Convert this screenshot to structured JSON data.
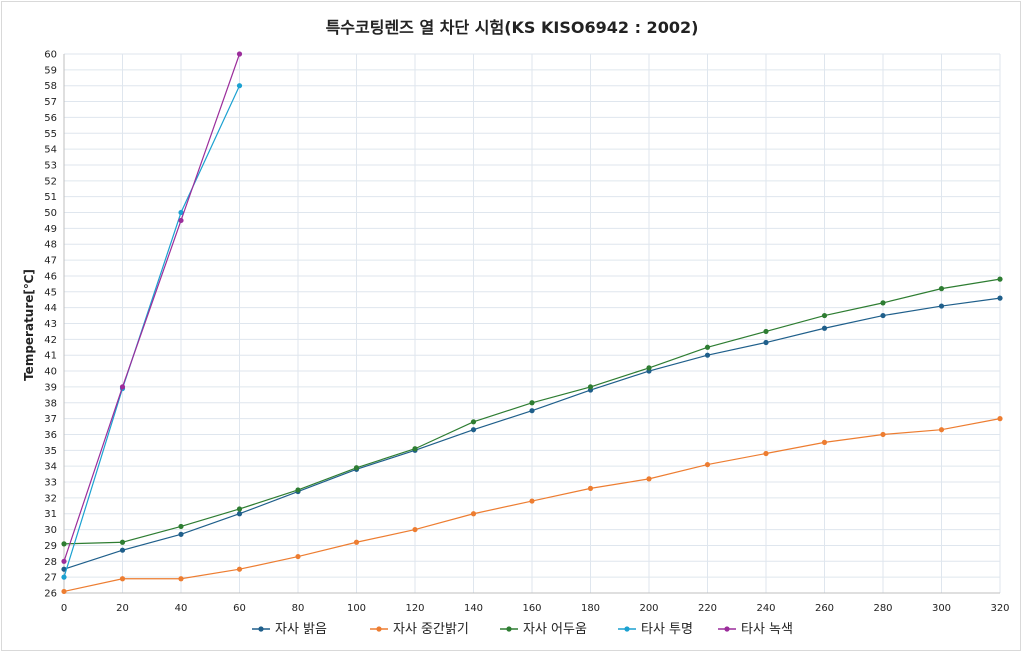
{
  "chart_data": {
    "type": "line",
    "title": "특수코팅렌즈 열 차단 시험(KS KISO6942 : 2002)",
    "xlabel": "",
    "ylabel": "Temperature[℃]",
    "xlim": [
      0,
      320
    ],
    "ylim": [
      26,
      60
    ],
    "x_ticks": [
      0,
      20,
      40,
      60,
      80,
      100,
      120,
      140,
      160,
      180,
      200,
      220,
      240,
      260,
      280,
      300,
      320
    ],
    "y_ticks": [
      26,
      27,
      28,
      29,
      30,
      31,
      32,
      33,
      34,
      35,
      36,
      37,
      38,
      39,
      40,
      41,
      42,
      43,
      44,
      45,
      46,
      47,
      48,
      49,
      50,
      51,
      52,
      53,
      54,
      55,
      56,
      57,
      58,
      59,
      60
    ],
    "grid": true,
    "legend_position": "bottom",
    "series": [
      {
        "name": "자사 밝음",
        "color": "#1f5f8b",
        "x": [
          0,
          20,
          40,
          60,
          80,
          100,
          120,
          140,
          160,
          180,
          200,
          220,
          240,
          260,
          280,
          300,
          320
        ],
        "values": [
          27.5,
          28.7,
          29.7,
          31.0,
          32.4,
          33.8,
          35.0,
          36.3,
          37.5,
          38.8,
          40.0,
          41.0,
          41.8,
          42.7,
          43.5,
          44.1,
          44.6
        ]
      },
      {
        "name": "자사 중간밝기",
        "color": "#ed7d31",
        "x": [
          0,
          20,
          40,
          60,
          80,
          100,
          120,
          140,
          160,
          180,
          200,
          220,
          240,
          260,
          280,
          300,
          320
        ],
        "values": [
          26.1,
          26.9,
          26.9,
          27.5,
          28.3,
          29.2,
          30.0,
          31.0,
          31.8,
          32.6,
          33.2,
          34.1,
          34.8,
          35.5,
          36.0,
          36.3,
          37.0
        ]
      },
      {
        "name": "자사 어두움",
        "color": "#2e7d32",
        "x": [
          0,
          20,
          40,
          60,
          80,
          100,
          120,
          140,
          160,
          180,
          200,
          220,
          240,
          260,
          280,
          300,
          320
        ],
        "values": [
          29.1,
          29.2,
          30.2,
          31.3,
          32.5,
          33.9,
          35.1,
          36.8,
          38.0,
          39.0,
          40.2,
          41.5,
          42.5,
          43.5,
          44.3,
          45.2,
          45.8
        ]
      },
      {
        "name": "타사 투명",
        "color": "#1ba1d1",
        "x": [
          0,
          20,
          40,
          60
        ],
        "values": [
          27.0,
          38.9,
          50.0,
          58.0
        ]
      },
      {
        "name": "타사 녹색",
        "color": "#9b2d9b",
        "x": [
          0,
          20,
          40,
          60
        ],
        "values": [
          28.0,
          39.0,
          49.5,
          60.0
        ]
      }
    ]
  }
}
